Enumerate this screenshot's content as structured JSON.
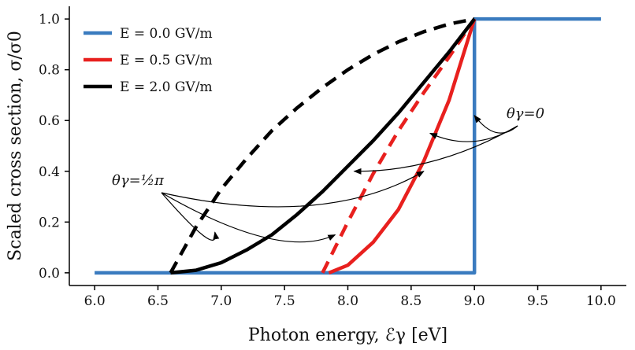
{
  "chart_data": {
    "type": "line",
    "xlabel": "Photon energy, ℰγ [eV]",
    "ylabel": "Scaled cross section, σ/σ0",
    "xlim": [
      5.8,
      10.2
    ],
    "ylim": [
      -0.05,
      1.05
    ],
    "xticks": [
      "6.0",
      "6.5",
      "7.0",
      "7.5",
      "8.0",
      "8.5",
      "9.0",
      "9.5",
      "10.0"
    ],
    "yticks": [
      "0.0",
      "0.2",
      "0.4",
      "0.6",
      "0.8",
      "1.0"
    ],
    "legend_position": "top-left",
    "series": [
      {
        "name": "E = 0.0 GV/m",
        "color": "#3a7bbf",
        "style": "solid",
        "x": [
          6.0,
          9.0,
          9.0,
          10.0
        ],
        "y": [
          0.0,
          0.0,
          1.0,
          1.0
        ]
      },
      {
        "name": "E = 0.5 GV/m",
        "color": "#e8201e",
        "style": "solid",
        "annotation": "θγ = 0",
        "x": [
          7.85,
          8.0,
          8.2,
          8.4,
          8.6,
          8.8,
          9.0
        ],
        "y": [
          0.0,
          0.03,
          0.12,
          0.25,
          0.44,
          0.68,
          1.0
        ]
      },
      {
        "name": "E = 0.5 GV/m",
        "color": "#e8201e",
        "style": "dashed",
        "annotation": "θγ = ½π",
        "x": [
          7.8,
          8.0,
          8.2,
          8.4,
          8.6,
          8.8,
          9.0
        ],
        "y": [
          0.0,
          0.2,
          0.39,
          0.56,
          0.71,
          0.85,
          1.0
        ]
      },
      {
        "name": "E = 2.0 GV/m",
        "color": "#000000",
        "style": "solid",
        "annotation": "θγ = 0",
        "x": [
          6.6,
          6.8,
          7.0,
          7.2,
          7.4,
          7.6,
          7.8,
          8.0,
          8.2,
          8.4,
          8.6,
          8.8,
          9.0
        ],
        "y": [
          0.0,
          0.01,
          0.04,
          0.09,
          0.15,
          0.23,
          0.32,
          0.42,
          0.52,
          0.63,
          0.75,
          0.87,
          1.0
        ]
      },
      {
        "name": "E = 2.0 GV/m",
        "color": "#000000",
        "style": "dashed",
        "annotation": "θγ = ½π",
        "x": [
          6.6,
          6.8,
          7.0,
          7.2,
          7.4,
          7.6,
          7.8,
          8.0,
          8.2,
          8.4,
          8.6,
          8.8,
          9.0
        ],
        "y": [
          0.0,
          0.18,
          0.33,
          0.45,
          0.56,
          0.65,
          0.73,
          0.8,
          0.86,
          0.91,
          0.95,
          0.98,
          1.0
        ]
      }
    ],
    "annotations": [
      {
        "text": "θγ=0",
        "targets": [
          [
            8.05,
            0.4
          ],
          [
            8.65,
            0.55
          ],
          [
            9.0,
            0.62
          ]
        ]
      },
      {
        "text": "θγ=½π",
        "targets": [
          [
            6.95,
            0.16
          ],
          [
            7.9,
            0.15
          ],
          [
            8.6,
            0.4
          ]
        ]
      }
    ]
  }
}
